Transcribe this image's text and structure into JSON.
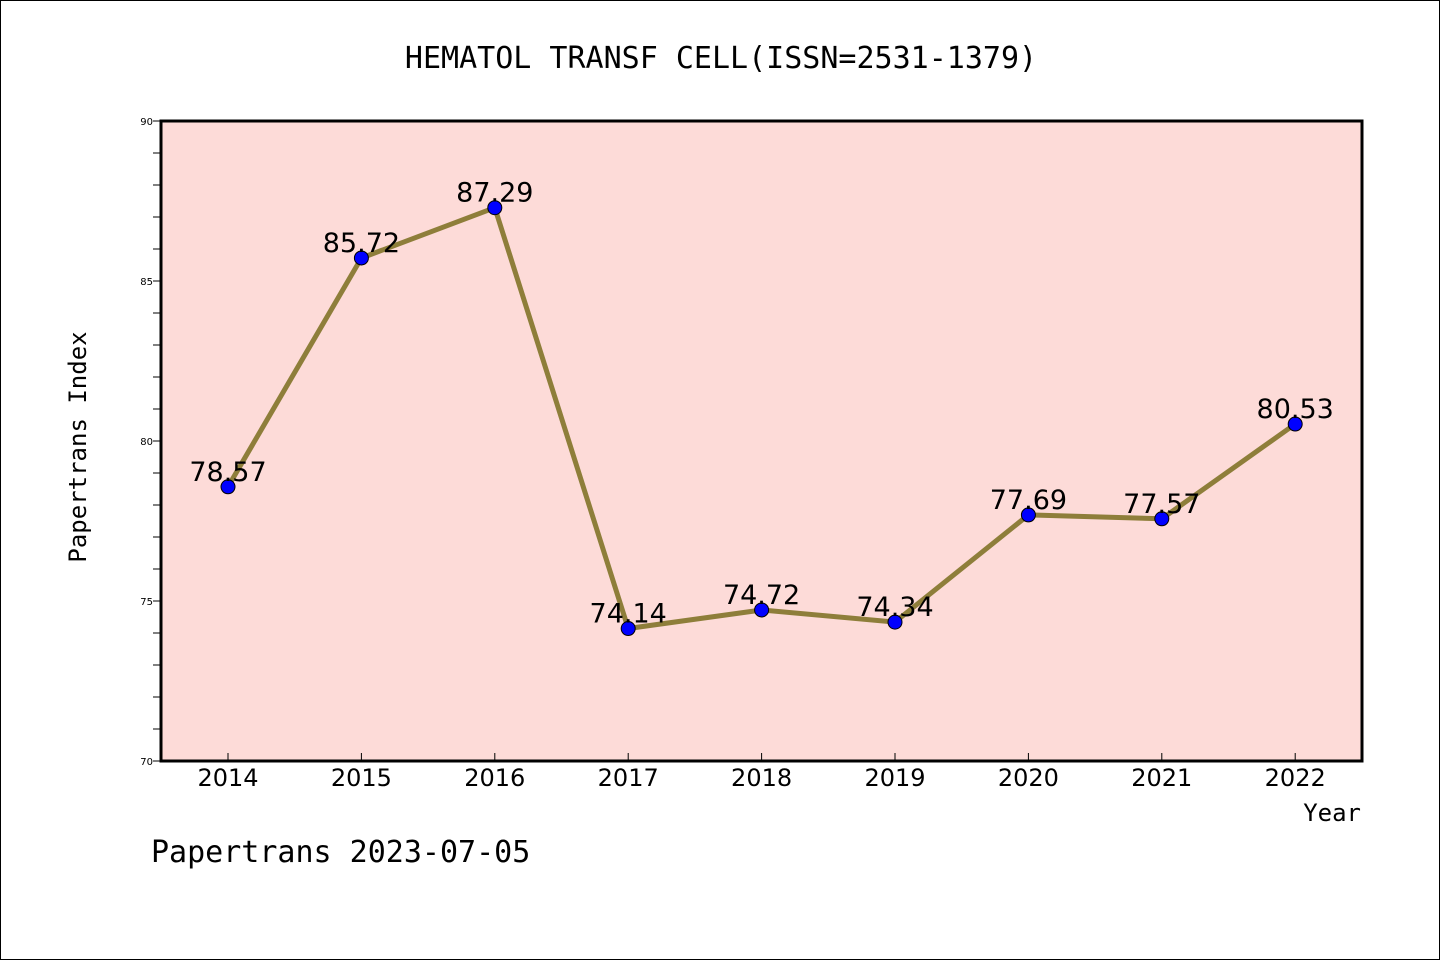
{
  "chart_data": {
    "type": "line",
    "title": "HEMATOL TRANSF CELL(ISSN=2531-1379)",
    "xlabel": "Year",
    "ylabel": "Papertrans Index",
    "categories": [
      "2014",
      "2015",
      "2016",
      "2017",
      "2018",
      "2019",
      "2020",
      "2021",
      "2022"
    ],
    "values": [
      78.57,
      85.72,
      87.29,
      74.14,
      74.72,
      74.34,
      77.69,
      77.57,
      80.53
    ],
    "data_labels": [
      "78.57",
      "85.72",
      "87.29",
      "74.14",
      "74.72",
      "74.34",
      "77.69",
      "77.57",
      "80.53"
    ],
    "ylim": [
      70,
      90
    ],
    "yticks": [
      "70",
      "75",
      "80",
      "85",
      "90"
    ],
    "grid": false,
    "colors": {
      "plot_background": "#fddbd8",
      "line": "#8e7e3a",
      "marker": "#0000ff"
    }
  },
  "footer": "Papertrans 2023-07-05"
}
